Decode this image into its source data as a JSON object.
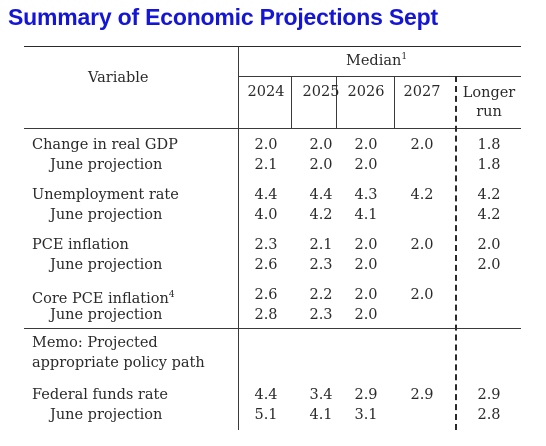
{
  "title": "Summary of Economic Projections Sept",
  "table": {
    "variable_header": "Variable",
    "median_header": "Median",
    "median_footnote": "1",
    "columns": [
      "2024",
      "2025",
      "2026",
      "2027"
    ],
    "longer_run_line1": "Longer",
    "longer_run_line2": "run",
    "rows": [
      {
        "label": "Change in real GDP",
        "values": [
          "2.0",
          "2.0",
          "2.0",
          "2.0"
        ],
        "longer": "1.8"
      },
      {
        "label": "June projection",
        "values": [
          "2.1",
          "2.0",
          "2.0",
          ""
        ],
        "longer": "1.8"
      },
      {
        "label": "Unemployment rate",
        "values": [
          "4.4",
          "4.4",
          "4.3",
          "4.2"
        ],
        "longer": "4.2"
      },
      {
        "label": "June projection",
        "values": [
          "4.0",
          "4.2",
          "4.1",
          ""
        ],
        "longer": "4.2"
      },
      {
        "label": "PCE inflation",
        "values": [
          "2.3",
          "2.1",
          "2.0",
          "2.0"
        ],
        "longer": "2.0"
      },
      {
        "label": "June projection",
        "values": [
          "2.6",
          "2.3",
          "2.0",
          ""
        ],
        "longer": "2.0"
      },
      {
        "label": "Core PCE inflation",
        "footnote": "4",
        "values": [
          "2.6",
          "2.2",
          "2.0",
          "2.0"
        ],
        "longer": ""
      },
      {
        "label": "June projection",
        "values": [
          "2.8",
          "2.3",
          "2.0",
          ""
        ],
        "longer": ""
      }
    ],
    "memo_line1": "Memo: Projected",
    "memo_line2": "appropriate policy path",
    "ff_rows": [
      {
        "label": "Federal funds rate",
        "values": [
          "4.4",
          "3.4",
          "2.9",
          "2.9"
        ],
        "longer": "2.9"
      },
      {
        "label": "June projection",
        "values": [
          "5.1",
          "4.1",
          "3.1",
          ""
        ],
        "longer": "2.8"
      }
    ]
  }
}
